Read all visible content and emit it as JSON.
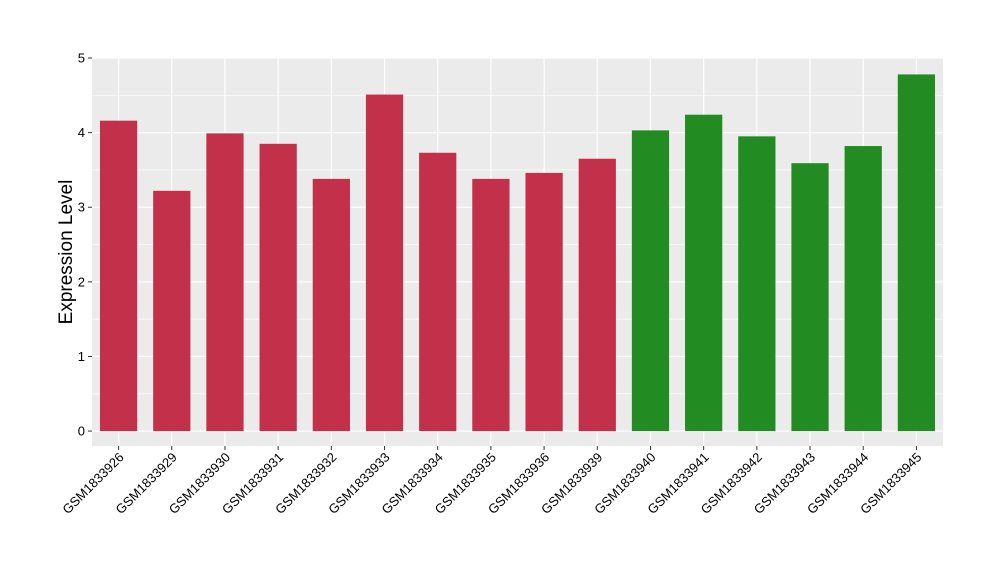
{
  "chart_data": {
    "type": "bar",
    "title": "",
    "xlabel": "",
    "ylabel": "Expression Level",
    "ylim": [
      -0.2,
      5
    ],
    "yticks": [
      0,
      1,
      2,
      3,
      4,
      5
    ],
    "grid": true,
    "categories": [
      "GSM1833926",
      "GSM1833929",
      "GSM1833930",
      "GSM1833931",
      "GSM1833932",
      "GSM1833933",
      "GSM1833934",
      "GSM1833935",
      "GSM1833936",
      "GSM1833939",
      "GSM1833940",
      "GSM1833941",
      "GSM1833942",
      "GSM1833943",
      "GSM1833944",
      "GSM1833945"
    ],
    "values": [
      4.16,
      3.22,
      3.99,
      3.85,
      3.38,
      4.51,
      3.73,
      3.38,
      3.46,
      3.65,
      4.03,
      4.24,
      3.95,
      3.59,
      3.82,
      4.78
    ],
    "colors": [
      "#c3304a",
      "#c3304a",
      "#c3304a",
      "#c3304a",
      "#c3304a",
      "#c3304a",
      "#c3304a",
      "#c3304a",
      "#c3304a",
      "#c3304a",
      "#228b22",
      "#228b22",
      "#228b22",
      "#228b22",
      "#228b22",
      "#228b22"
    ],
    "panel_background": "#ebebeb",
    "grid_color": "#ffffff"
  }
}
